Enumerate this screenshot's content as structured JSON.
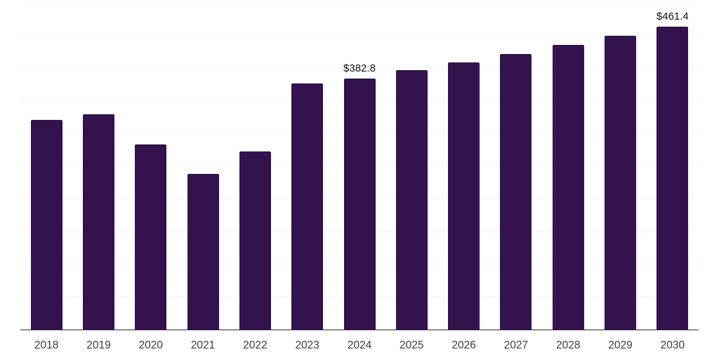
{
  "chart_data": {
    "type": "bar",
    "title": "",
    "xlabel": "",
    "ylabel": "",
    "categories": [
      "2018",
      "2019",
      "2020",
      "2021",
      "2022",
      "2023",
      "2024",
      "2025",
      "2026",
      "2027",
      "2028",
      "2029",
      "2030"
    ],
    "values": [
      319.0,
      328.3,
      281.7,
      237.0,
      271.4,
      375.0,
      382.8,
      394.9,
      407.4,
      420.2,
      433.5,
      447.2,
      461.4
    ],
    "data_labels": [
      "",
      "",
      "",
      "",
      "",
      "",
      "$382.8",
      "",
      "",
      "",
      "",
      "",
      "$461.4"
    ],
    "ylim": [
      0,
      500
    ],
    "grid_step": 50,
    "grid": true,
    "legend": false,
    "y_tick_labels_visible": false,
    "colors": {
      "bar": "#33124d",
      "grid": "#f3f3f3",
      "axis": "#2a2a2a",
      "tick_label": "#3d3d3d",
      "value_label": "#111111",
      "background": "#ffffff"
    }
  }
}
